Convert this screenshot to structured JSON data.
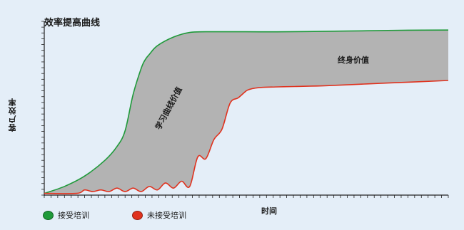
{
  "chart_data": {
    "type": "area",
    "title": "效率提高曲线",
    "xlabel": "时间",
    "ylabel": "客户效率",
    "xlim": [
      0,
      100
    ],
    "ylim": [
      0,
      100
    ],
    "grid": false,
    "legend_position": "bottom-left",
    "series": [
      {
        "name": "接受培训",
        "color": "#1f9a3a",
        "x": [
          0,
          5,
          10,
          15,
          18,
          20,
          22,
          24,
          25,
          26,
          28,
          32,
          36,
          40,
          50,
          60,
          70,
          80,
          90,
          100
        ],
        "y": [
          1,
          5,
          11,
          20,
          28,
          37,
          58,
          73,
          78,
          81,
          86,
          91,
          93.6,
          94,
          94,
          94,
          94.3,
          94.6,
          94.9,
          95
        ]
      },
      {
        "name": "未接受培训",
        "color": "#e0321e",
        "x": [
          0,
          8,
          10,
          12,
          14,
          16,
          18,
          20,
          22,
          24,
          26,
          28,
          30,
          32,
          34,
          36,
          38,
          40,
          42,
          44,
          46,
          48,
          50,
          51,
          52,
          54,
          58,
          62,
          70,
          80,
          90,
          100
        ],
        "y": [
          1,
          1,
          3,
          2,
          3,
          2,
          4,
          2,
          4,
          2,
          5,
          3,
          7,
          4,
          8,
          5,
          22,
          21,
          32,
          38,
          53,
          56,
          60,
          61,
          61.5,
          62,
          62.3,
          62.5,
          63,
          64,
          65,
          66
        ]
      }
    ],
    "annotations": [
      {
        "text": "终身价值"
      },
      {
        "text": "学习曲线价值"
      }
    ]
  }
}
